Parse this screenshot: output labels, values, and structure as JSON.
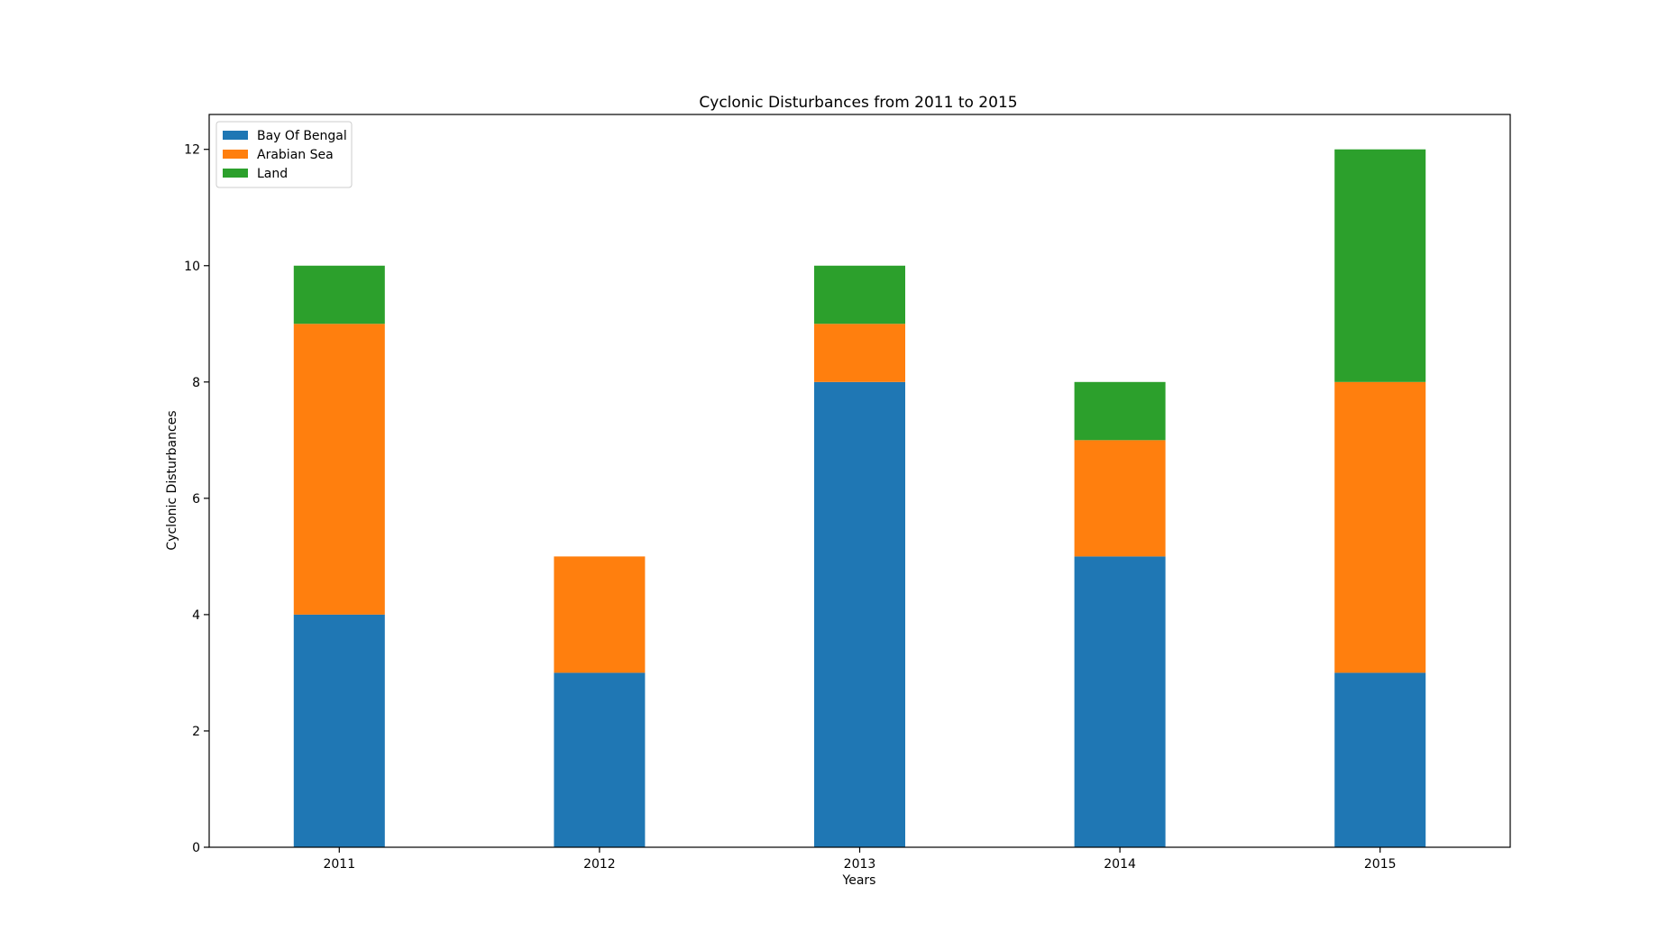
{
  "chart_data": {
    "type": "bar",
    "stacked": true,
    "title": "Cyclonic Disturbances from 2011 to 2015",
    "xlabel": "Years",
    "ylabel": "Cyclonic Disturbances",
    "categories": [
      "2011",
      "2012",
      "2013",
      "2014",
      "2015"
    ],
    "ylim": [
      0,
      12.6
    ],
    "yticks": [
      0,
      2,
      4,
      6,
      8,
      10,
      12
    ],
    "grid": false,
    "legend_position": "top-left",
    "series": [
      {
        "name": "Bay Of Bengal",
        "color": "#1f77b4",
        "values": [
          4,
          3,
          8,
          5,
          3
        ]
      },
      {
        "name": "Arabian Sea",
        "color": "#ff7f0e",
        "values": [
          5,
          2,
          1,
          2,
          5
        ]
      },
      {
        "name": "Land",
        "color": "#2ca02c",
        "values": [
          1,
          0,
          1,
          1,
          4
        ]
      }
    ]
  }
}
